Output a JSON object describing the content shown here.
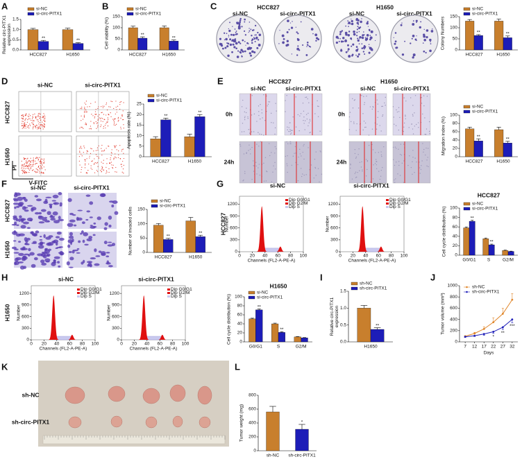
{
  "panel_letters": [
    "A",
    "B",
    "C",
    "D",
    "E",
    "F",
    "G",
    "H",
    "I",
    "J",
    "K",
    "L"
  ],
  "image_panels": {
    "C": {
      "groups": [
        {
          "title": "HCC827",
          "columns": [
            "si-NC",
            "si-circ-PITX1"
          ]
        },
        {
          "title": "H1650",
          "columns": [
            "si-NC",
            "si-circ-PITX1"
          ]
        }
      ]
    },
    "D": {
      "columns": [
        "si-NC",
        "si-circ-PITX1"
      ],
      "rows": [
        "HCC827",
        "H1650"
      ],
      "y_axis": "PI",
      "x_axis": "V-FITC"
    },
    "E": {
      "groups": [
        {
          "title": "HCC827",
          "columns": [
            "si-NC",
            "si-circ-PITX1"
          ]
        },
        {
          "title": "H1650",
          "columns": [
            "si-NC",
            "si-circ-PITX1"
          ]
        }
      ],
      "rows": [
        "0h",
        "24h"
      ]
    },
    "F": {
      "columns": [
        "si-NC",
        "si-circ-PITX1"
      ],
      "rows": [
        "HCC827",
        "H1650"
      ]
    },
    "G": {
      "columns": [
        "si-NC",
        "si-circ-PITX1"
      ],
      "row": "HCC827"
    },
    "H": {
      "columns": [
        "si-NC",
        "si-circ-PITX1"
      ],
      "row": "H1650"
    },
    "K": {
      "rows": [
        "sh-NC",
        "sh-circ-PITX1"
      ]
    }
  },
  "flow_histogram": {
    "y_label": "Number",
    "x_label": "Channels (FL2-A-PE-A)",
    "xlim": [
      0,
      100
    ],
    "ylim": [
      0,
      1400
    ],
    "xticks": [
      0,
      20,
      40,
      60,
      80,
      100
    ],
    "yticks": [
      0,
      300,
      600,
      900,
      1200
    ],
    "legend": [
      {
        "name": "Dip G0/G1",
        "color": "#e01010"
      },
      {
        "name": "Dip G2/M",
        "color": "#e01010"
      },
      {
        "name": "Dip S",
        "color": "#c9c9ef"
      }
    ]
  },
  "chart_data": [
    {
      "type": "bar",
      "ylabel": [
        "Relative circ-PITX1",
        "expression"
      ],
      "categories": [
        "HCC827",
        "H1650"
      ],
      "ylim": [
        0,
        1.5
      ],
      "yticks": [
        {
          "value": 0,
          "label": "0.0"
        },
        {
          "value": 0.5,
          "label": "0.5"
        },
        {
          "value": 1,
          "label": "1.0"
        },
        {
          "value": 1.5,
          "label": "1.5"
        }
      ],
      "series": [
        {
          "name": "si-NC",
          "color": "#c87f2d",
          "values": [
            1.0,
            1.0
          ],
          "errors": [
            0.06,
            0.07
          ],
          "significance": [
            null,
            null
          ]
        },
        {
          "name": "si-circ-PITX1",
          "color": "#1d1db8",
          "values": [
            0.42,
            0.32
          ],
          "errors": [
            0.05,
            0.04
          ],
          "significance": [
            "**",
            "**"
          ]
        }
      ]
    },
    {
      "type": "bar",
      "ylabel": [
        "Cell viability (%)"
      ],
      "categories": [
        "HCC827",
        "H1650"
      ],
      "ylim": [
        0,
        150
      ],
      "yticks": [
        0,
        50,
        100,
        150
      ],
      "series": [
        {
          "name": "si-NC",
          "color": "#c87f2d",
          "values": [
            100,
            100
          ],
          "errors": [
            7,
            8
          ],
          "significance": [
            null,
            null
          ]
        },
        {
          "name": "si-circ-PITX1",
          "color": "#1d1db8",
          "values": [
            53,
            40
          ],
          "errors": [
            6,
            5
          ],
          "significance": [
            "**",
            "**"
          ]
        }
      ]
    },
    {
      "type": "bar",
      "ylabel": [
        "Colony Numbers"
      ],
      "categories": [
        "HCC827",
        "H1650"
      ],
      "ylim": [
        0,
        150
      ],
      "yticks": [
        0,
        50,
        100,
        150
      ],
      "series": [
        {
          "name": "si-NC",
          "color": "#c87f2d",
          "values": [
            130,
            130
          ],
          "errors": [
            7,
            9
          ],
          "significance": [
            null,
            null
          ]
        },
        {
          "name": "si-circ-PITX1",
          "color": "#1d1db8",
          "values": [
            65,
            55
          ],
          "errors": [
            4,
            8
          ],
          "significance": [
            "**",
            "**"
          ]
        }
      ]
    },
    {
      "type": "bar",
      "ylabel": [
        "Apoptosis rate (%)"
      ],
      "categories": [
        "HCC827",
        "H1650"
      ],
      "ylim": [
        0,
        25
      ],
      "yticks": [
        0,
        5,
        10,
        15,
        20,
        25
      ],
      "series": [
        {
          "name": "si-NC",
          "color": "#c87f2d",
          "values": [
            8.5,
            9.5
          ],
          "errors": [
            1,
            1.2
          ],
          "significance": [
            null,
            null
          ]
        },
        {
          "name": "si-circ-PITX1",
          "color": "#1d1db8",
          "values": [
            17.5,
            19
          ],
          "errors": [
            0.8,
            1
          ],
          "significance": [
            "**",
            "**"
          ]
        }
      ]
    },
    {
      "type": "bar",
      "ylabel": [
        "Migration index (%)"
      ],
      "categories": [
        "HCC827",
        "H1650"
      ],
      "ylim": [
        0,
        100
      ],
      "yticks": [
        0,
        20,
        40,
        60,
        80,
        100
      ],
      "series": [
        {
          "name": "si-NC",
          "color": "#c87f2d",
          "values": [
            67,
            65
          ],
          "errors": [
            4,
            6
          ],
          "significance": [
            null,
            null
          ]
        },
        {
          "name": "si-circ-PITX1",
          "color": "#1d1db8",
          "values": [
            38,
            33
          ],
          "errors": [
            5,
            4
          ],
          "significance": [
            "**",
            "**"
          ]
        }
      ]
    },
    {
      "type": "bar",
      "ylabel": [
        "Number of invaded cells"
      ],
      "categories": [
        "HCC827",
        "H1650"
      ],
      "ylim": [
        0,
        150
      ],
      "yticks": [
        0,
        50,
        100,
        150
      ],
      "series": [
        {
          "name": "si-NC",
          "color": "#c87f2d",
          "values": [
            95,
            110
          ],
          "errors": [
            6,
            12
          ],
          "significance": [
            null,
            null
          ]
        },
        {
          "name": "si-circ-PITX1",
          "color": "#1d1db8",
          "values": [
            45,
            55
          ],
          "errors": [
            4,
            5
          ],
          "significance": [
            "**",
            "**"
          ]
        }
      ]
    },
    {
      "type": "bar",
      "title": "HCC827",
      "ylabel": [
        "Cell cycle distribution (%)"
      ],
      "categories": [
        "G0/G1",
        "S",
        "G2/M"
      ],
      "ylim": [
        0,
        100
      ],
      "yticks": [
        0,
        20,
        40,
        60,
        80,
        100
      ],
      "series": [
        {
          "name": "si-NC",
          "color": "#c87f2d",
          "values": [
            58,
            35,
            10
          ],
          "errors": [
            2,
            1.5,
            0.8
          ],
          "significance": [
            null,
            null,
            null
          ]
        },
        {
          "name": "si-circ-PITX1",
          "color": "#1d1db8",
          "values": [
            72,
            22,
            8
          ],
          "errors": [
            2,
            1.5,
            0.6
          ],
          "significance": [
            "**",
            "**",
            null
          ]
        }
      ]
    },
    {
      "type": "bar",
      "title": "H1650",
      "ylabel": [
        "Cell cycle distribution (%)"
      ],
      "categories": [
        "G0/G1",
        "S",
        "G2/M"
      ],
      "ylim": [
        0,
        100
      ],
      "yticks": [
        0,
        20,
        40,
        60,
        80,
        100
      ],
      "series": [
        {
          "name": "si-NC",
          "color": "#c87f2d",
          "values": [
            51,
            40,
            11
          ],
          "errors": [
            1.5,
            1.5,
            0.8
          ],
          "significance": [
            null,
            null,
            null
          ]
        },
        {
          "name": "si-circ-PITX1",
          "color": "#1d1db8",
          "values": [
            71,
            21,
            9
          ],
          "errors": [
            2,
            1.5,
            0.6
          ],
          "significance": [
            "**",
            "**",
            null
          ]
        }
      ]
    },
    {
      "type": "bar",
      "ylabel": [
        "Relative circ-PITX1",
        "expression"
      ],
      "categories": [
        "H1650"
      ],
      "ylim": [
        0,
        1.5
      ],
      "yticks": [
        {
          "value": 0,
          "label": "0.0"
        },
        {
          "value": 0.5,
          "label": "0.5"
        },
        {
          "value": 1,
          "label": "1.0"
        },
        {
          "value": 1.5,
          "label": "1.5"
        }
      ],
      "series": [
        {
          "name": "sh-NC",
          "color": "#c87f2d",
          "values": [
            1.0
          ],
          "errors": [
            0.08
          ],
          "significance": [
            null
          ]
        },
        {
          "name": "sh-circ-PITX1",
          "color": "#1d1db8",
          "values": [
            0.37
          ],
          "errors": [
            0.05
          ],
          "significance": [
            "**"
          ]
        }
      ]
    },
    {
      "type": "line",
      "ylabel": [
        "Tumor volume (mm³)"
      ],
      "xlabel": "Days",
      "x": [
        7,
        12,
        17,
        22,
        27,
        32
      ],
      "xlim": [
        4,
        35
      ],
      "xticks": [
        7,
        12,
        17,
        22,
        27,
        32
      ],
      "ylim": [
        0,
        1000
      ],
      "yticks": [
        0,
        200,
        400,
        600,
        800,
        1000
      ],
      "series": [
        {
          "name": "sh-NC",
          "color": "#e0862a",
          "values": [
            100,
            150,
            230,
            350,
            500,
            750
          ],
          "errors": [
            10,
            20,
            40,
            80,
            100,
            110
          ],
          "significance": [
            null,
            null,
            null,
            null,
            null,
            null
          ]
        },
        {
          "name": "sh-circ-PITX1",
          "color": "#1d1db8",
          "values": [
            90,
            110,
            140,
            180,
            260,
            400
          ],
          "errors": [
            10,
            15,
            25,
            30,
            40,
            60
          ],
          "significance": [
            null,
            null,
            null,
            "*",
            "**",
            "***"
          ]
        }
      ]
    },
    {
      "type": "bar",
      "ylabel": [
        "Tumor weight (mg)"
      ],
      "categories": [
        "sh-NC",
        "sh-circ-PITX1"
      ],
      "ylim": [
        0,
        800
      ],
      "yticks": [
        0,
        200,
        400,
        600,
        800
      ],
      "values": [
        560,
        310
      ],
      "errors": [
        80,
        70
      ],
      "colors": [
        "#c87f2d",
        "#1d1db8"
      ],
      "significance": [
        null,
        "*"
      ]
    }
  ]
}
